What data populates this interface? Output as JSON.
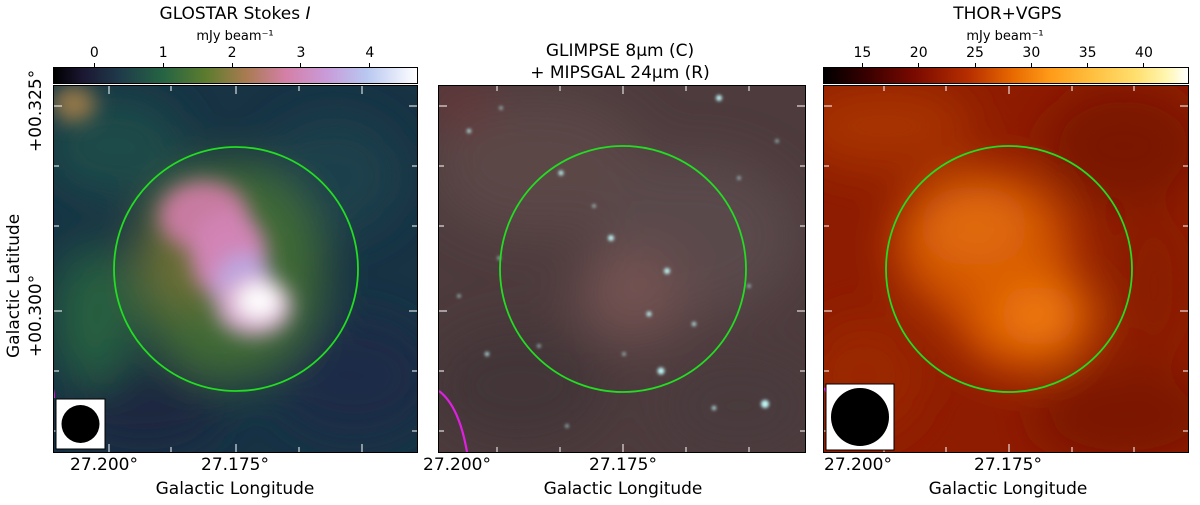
{
  "panels": [
    {
      "title_main": "GLOSTAR Stokes ",
      "title_italic": "I",
      "colorbar_unit": "mJy beam⁻¹",
      "colorbar_ticks": [
        "0",
        "1",
        "2",
        "3",
        "4"
      ],
      "colorbar_tick_values": [
        0,
        1,
        2,
        3,
        4
      ],
      "colorbar_range": [
        -0.6,
        4.7
      ],
      "colormap": "cubehelix",
      "circle_color": "#22dd22",
      "beam_marker": "beam-ellipse"
    },
    {
      "title_line1": "GLIMPSE 8μm (C)",
      "title_line2": "+ MIPSGAL 24μm (R)",
      "circle_color": "#22dd22",
      "magenta_arc_color": "#e020e0"
    },
    {
      "title_main": "THOR+VGPS",
      "colorbar_unit": "mJy beam⁻¹",
      "colorbar_ticks": [
        "15",
        "20",
        "25",
        "30",
        "35",
        "40"
      ],
      "colorbar_tick_values": [
        15,
        20,
        25,
        30,
        35,
        40
      ],
      "colorbar_range": [
        11.5,
        44
      ],
      "colormap": "afmhot",
      "circle_color": "#22dd22",
      "beam_marker": "beam-ellipse"
    }
  ],
  "axes": {
    "xlabel": "Galactic Longitude",
    "ylabel": "Galactic Latitude",
    "xticks": [
      "27.200°",
      "27.175°"
    ],
    "yticks": [
      "+00.325°",
      "+00.300°"
    ]
  }
}
